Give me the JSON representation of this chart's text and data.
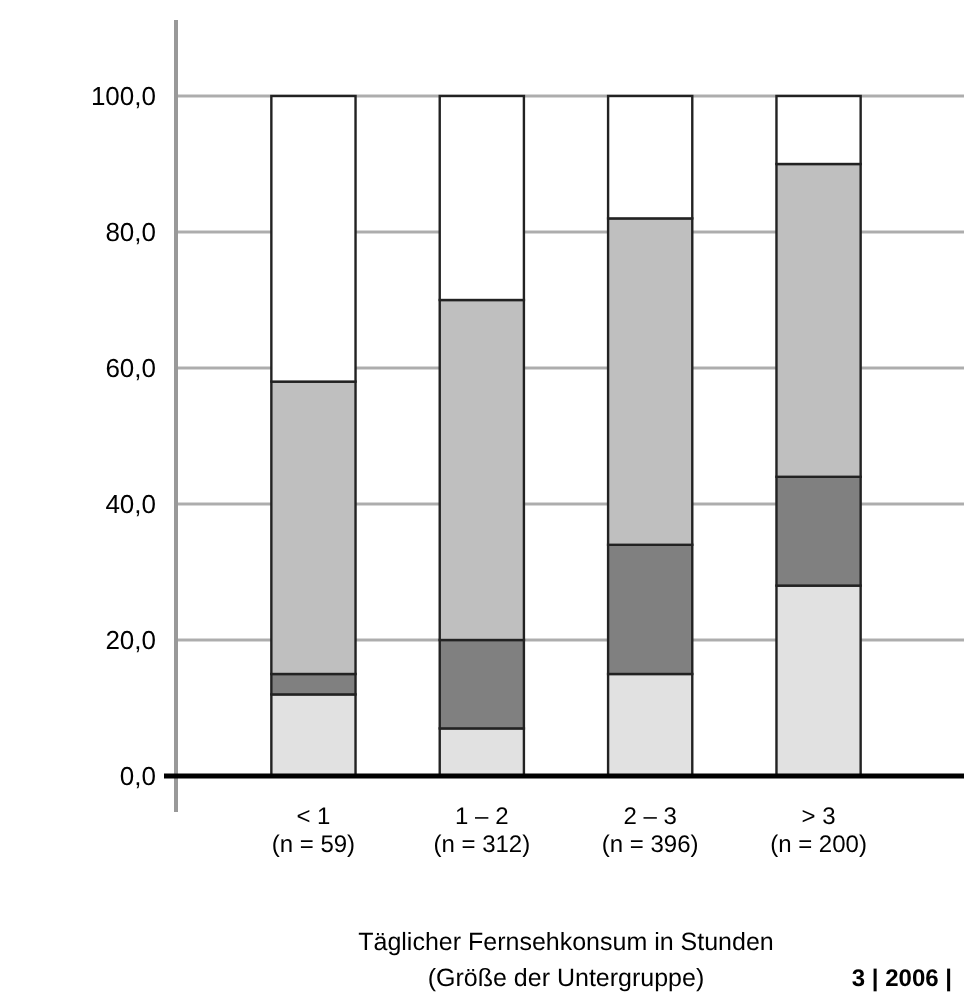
{
  "chart_data": {
    "type": "bar",
    "stacked": true,
    "categories": [
      "< 1\n(n = 59)",
      "1 – 2\n(n = 312)",
      "2 – 3\n(n = 396)",
      "> 3\n(n = 200)"
    ],
    "series": [
      {
        "color": "#e1e1e1",
        "values": [
          12,
          7,
          15,
          28
        ]
      },
      {
        "color": "#808080",
        "values": [
          3,
          13,
          19,
          16
        ]
      },
      {
        "color": "#bfbfbf",
        "values": [
          43,
          50,
          48,
          46
        ]
      },
      {
        "color": "#ffffff",
        "values": [
          42,
          30,
          18,
          10
        ]
      }
    ],
    "ylim": [
      0,
      100
    ],
    "yticks": [
      {
        "value": 0,
        "label": "0,0"
      },
      {
        "value": 20,
        "label": "20,0"
      },
      {
        "value": 40,
        "label": "40,0"
      },
      {
        "value": 60,
        "label": "60,0"
      },
      {
        "value": 80,
        "label": "80,0"
      },
      {
        "value": 100,
        "label": "100,0"
      }
    ],
    "grid": "y",
    "xlabel": "Täglicher Fernsehkonsum in Stunden\n(Größe der Untergruppe)",
    "annotations": [
      "3 | 2006 |"
    ]
  }
}
